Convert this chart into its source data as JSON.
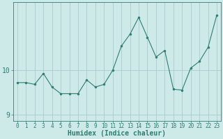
{
  "x": [
    0,
    1,
    2,
    3,
    4,
    5,
    6,
    7,
    8,
    9,
    10,
    11,
    12,
    13,
    14,
    15,
    16,
    17,
    18,
    19,
    20,
    21,
    22,
    23
  ],
  "y": [
    9.72,
    9.72,
    9.68,
    9.93,
    9.62,
    9.47,
    9.47,
    9.47,
    9.78,
    9.62,
    9.68,
    10.0,
    10.55,
    10.82,
    11.2,
    10.75,
    10.3,
    10.45,
    9.57,
    9.55,
    10.05,
    10.2,
    10.52,
    11.25
  ],
  "line_color": "#2d7d70",
  "marker": "o",
  "marker_size": 2,
  "bg_color": "#ceeae8",
  "grid_color": "#aaccca",
  "xlabel": "Humidex (Indice chaleur)",
  "yticks": [
    9,
    10
  ],
  "ylim": [
    8.85,
    11.55
  ],
  "xlim": [
    -0.5,
    23.5
  ],
  "xticks": [
    0,
    1,
    2,
    3,
    4,
    5,
    6,
    7,
    8,
    9,
    10,
    11,
    12,
    13,
    14,
    15,
    16,
    17,
    18,
    19,
    20,
    21,
    22,
    23
  ],
  "axis_color": "#2d7d70",
  "tick_color": "#2d7d70",
  "label_color": "#2d7d70",
  "font_size_xlabel": 7,
  "font_size_ticks_x": 5.5,
  "font_size_ticks_y": 7
}
